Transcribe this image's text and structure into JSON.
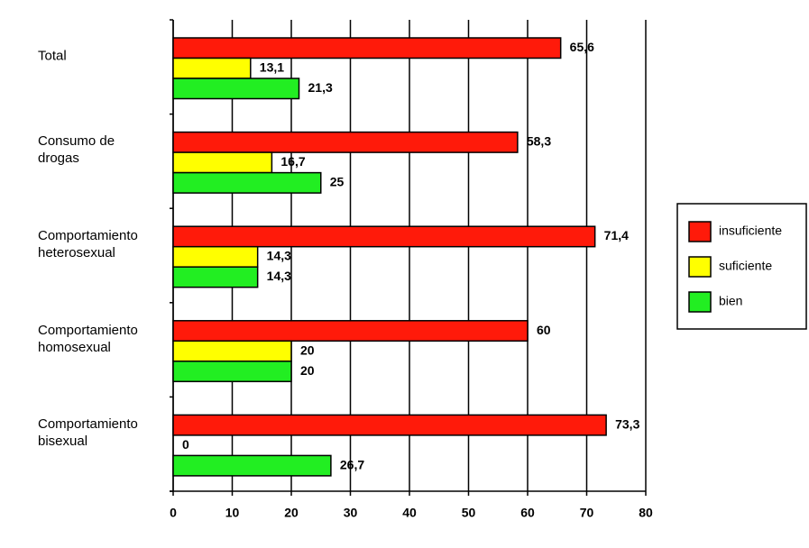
{
  "chart_data": {
    "type": "hbar",
    "categories": [
      "Total",
      "Consumo de\ndrogas",
      "Comportamiento\nheterosexual",
      "Comportamiento\nhomosexual",
      "Comportamiento\nbisexual"
    ],
    "series": [
      {
        "name": "insuficiente",
        "color": "#ff1a0a",
        "values": [
          65.6,
          58.3,
          71.4,
          60,
          73.3
        ],
        "value_labels": [
          "65,6",
          "58,3",
          "71,4",
          "60",
          "73,3"
        ]
      },
      {
        "name": "suficiente",
        "color": "#ffff00",
        "values": [
          13.1,
          16.7,
          14.3,
          20,
          0
        ],
        "value_labels": [
          "13,1",
          "16,7",
          "14,3",
          "20",
          "0"
        ]
      },
      {
        "name": "bien",
        "color": "#22ee22",
        "values": [
          21.3,
          25,
          14.3,
          20,
          26.7
        ],
        "value_labels": [
          "21,3",
          "25",
          "14,3",
          "20",
          "26,7"
        ]
      }
    ],
    "xlim": [
      0,
      80
    ],
    "xticks": [
      0,
      10,
      20,
      30,
      40,
      50,
      60,
      70,
      80
    ],
    "grid": true,
    "legend": "right"
  }
}
